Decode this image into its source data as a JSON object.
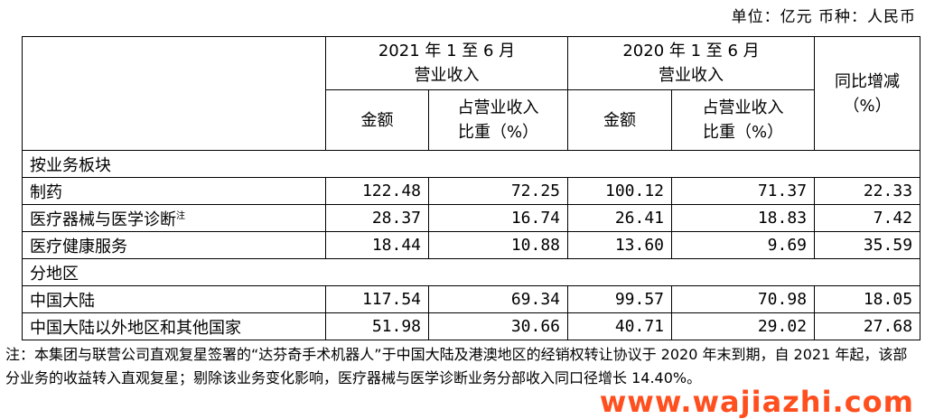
{
  "unit_line": "单位：亿元  币种：人民币",
  "headers": {
    "period_2021": "2021 年 1 至 6 月",
    "period_2020": "2020 年 1 至 6 月",
    "revenue": "营业收入",
    "yoy_line1": "同比增减",
    "yoy_line2": "（%）",
    "amount": "金额",
    "share_line1": "占营业收入",
    "share_line2": "比重（%）"
  },
  "sections": [
    {
      "title": "按业务板块",
      "rows": [
        {
          "label": "制药",
          "note": "",
          "amount_2021": "122.48",
          "share_2021": "72.25",
          "amount_2020": "100.12",
          "share_2020": "71.37",
          "yoy": "22.33"
        },
        {
          "label": "医疗器械与医学诊断",
          "note": "注",
          "amount_2021": "28.37",
          "share_2021": "16.74",
          "amount_2020": "26.41",
          "share_2020": "18.83",
          "yoy": "7.42"
        },
        {
          "label": "医疗健康服务",
          "note": "",
          "amount_2021": "18.44",
          "share_2021": "10.88",
          "amount_2020": "13.60",
          "share_2020": "9.69",
          "yoy": "35.59"
        }
      ]
    },
    {
      "title": "分地区",
      "rows": [
        {
          "label": "中国大陆",
          "note": "",
          "amount_2021": "117.54",
          "share_2021": "69.34",
          "amount_2020": "99.57",
          "share_2020": "70.98",
          "yoy": "18.05"
        },
        {
          "label": "中国大陆以外地区和其他国家",
          "note": "",
          "amount_2021": "51.98",
          "share_2021": "30.66",
          "amount_2020": "40.71",
          "share_2020": "29.02",
          "yoy": "27.68"
        }
      ]
    }
  ],
  "footnote": "注：本集团与联营公司直观复星签署的“达芬奇手术机器人”于中国大陆及港澳地区的经销权转让协议于 2020 年末到期，自 2021 年起，该部分业务的收益转入直观复星；剔除该业务变化影响，医疗器械与医学诊断业务分部收入同口径增长 14.40%。",
  "watermark": "www.wajiazhi.com"
}
